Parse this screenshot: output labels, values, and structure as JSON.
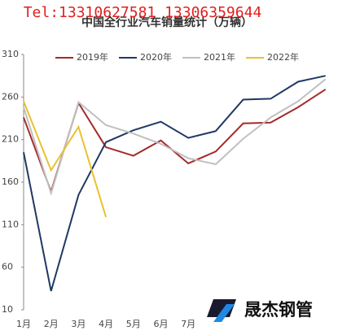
{
  "chart_data": {
    "type": "line",
    "title": "中国全行业汽车销量统计（万辆）",
    "overlay_text": "Tel:13310627581 13306359644",
    "logo_text": "晟杰钢管",
    "categories": [
      "1月",
      "2月",
      "3月",
      "4月",
      "5月",
      "6月",
      "7月",
      null,
      null,
      null,
      null,
      null
    ],
    "series": [
      {
        "name": "2019年",
        "color": "#a52a2a",
        "values": [
          236,
          149,
          253,
          201,
          191,
          209,
          182,
          196,
          229,
          230,
          248,
          269
        ]
      },
      {
        "name": "2020年",
        "color": "#1f3864",
        "values": [
          195,
          32,
          145,
          207,
          221,
          231,
          212,
          220,
          257,
          258,
          278,
          285
        ]
      },
      {
        "name": "2021年",
        "color": "#c0c0c0",
        "values": [
          248,
          147,
          254,
          227,
          217,
          205,
          188,
          181,
          211,
          236,
          255,
          281
        ]
      },
      {
        "name": "2022年",
        "color": "#e8c130",
        "values": [
          255,
          174,
          225,
          119,
          null,
          null,
          null,
          null,
          null,
          null,
          null,
          null
        ]
      }
    ],
    "ylim": [
      10,
      310
    ],
    "yticks": [
      10,
      60,
      110,
      160,
      210,
      260,
      310
    ],
    "legend": "top"
  }
}
